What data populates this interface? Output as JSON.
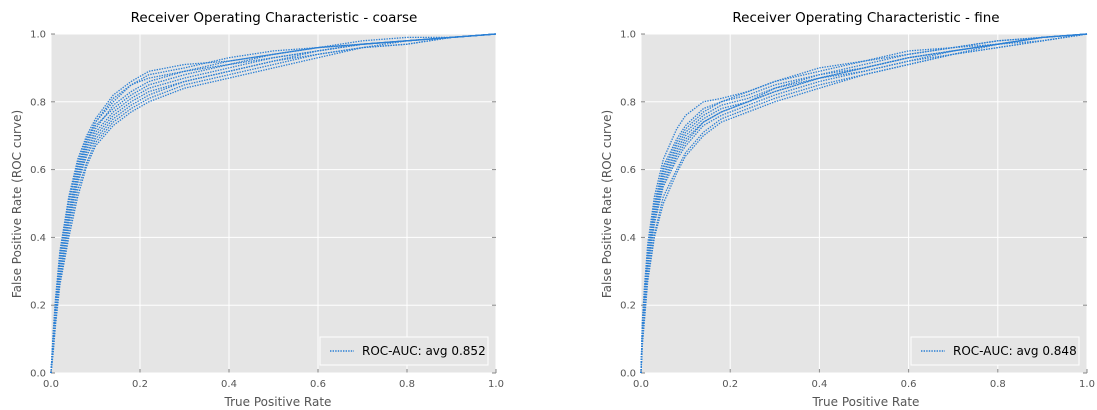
{
  "chart_data": [
    {
      "type": "line",
      "title": "Receiver Operating Characteristic - coarse",
      "xlabel": "True Positive Rate",
      "ylabel": "False Positive Rate (ROC curve)",
      "xlim": [
        0,
        1
      ],
      "ylim": [
        0,
        1
      ],
      "x_ticks": [
        "0.0",
        "0.2",
        "0.4",
        "0.6",
        "0.8",
        "1.0"
      ],
      "y_ticks": [
        "0.0",
        "0.2",
        "0.4",
        "0.6",
        "0.8",
        "1.0"
      ],
      "grid": true,
      "legend_position": "lower-right",
      "line_style": "dotted",
      "color": "#2a7fd4",
      "legend": [
        {
          "label": "ROC-AUC: avg 0.852"
        }
      ],
      "series": [
        {
          "x": [
            0,
            0.005,
            0.01,
            0.02,
            0.04,
            0.06,
            0.08,
            0.1,
            0.14,
            0.18,
            0.22,
            0.3,
            0.4,
            0.5,
            0.6,
            0.7,
            0.8,
            0.9,
            1.0
          ],
          "y": [
            0,
            0.1,
            0.2,
            0.33,
            0.48,
            0.6,
            0.68,
            0.73,
            0.78,
            0.82,
            0.85,
            0.88,
            0.91,
            0.94,
            0.96,
            0.97,
            0.98,
            0.99,
            1.0
          ]
        },
        {
          "x": [
            0,
            0.005,
            0.01,
            0.02,
            0.04,
            0.06,
            0.08,
            0.1,
            0.14,
            0.18,
            0.22,
            0.3,
            0.4,
            0.5,
            0.6,
            0.7,
            0.8,
            0.9,
            1.0
          ],
          "y": [
            0,
            0.08,
            0.17,
            0.29,
            0.45,
            0.57,
            0.65,
            0.7,
            0.76,
            0.8,
            0.83,
            0.86,
            0.89,
            0.92,
            0.95,
            0.97,
            0.98,
            0.99,
            1.0
          ]
        },
        {
          "x": [
            0,
            0.005,
            0.01,
            0.02,
            0.04,
            0.06,
            0.08,
            0.1,
            0.14,
            0.18,
            0.22,
            0.3,
            0.4,
            0.5,
            0.6,
            0.7,
            0.8,
            0.9,
            1.0
          ],
          "y": [
            0,
            0.12,
            0.22,
            0.36,
            0.52,
            0.63,
            0.7,
            0.75,
            0.82,
            0.86,
            0.89,
            0.91,
            0.92,
            0.94,
            0.96,
            0.97,
            0.98,
            0.99,
            1.0
          ]
        },
        {
          "x": [
            0,
            0.005,
            0.01,
            0.02,
            0.04,
            0.06,
            0.08,
            0.1,
            0.14,
            0.18,
            0.22,
            0.3,
            0.4,
            0.5,
            0.6,
            0.7,
            0.8,
            0.9,
            1.0
          ],
          "y": [
            0,
            0.07,
            0.15,
            0.27,
            0.42,
            0.54,
            0.62,
            0.68,
            0.74,
            0.78,
            0.81,
            0.85,
            0.88,
            0.91,
            0.94,
            0.96,
            0.97,
            0.99,
            1.0
          ]
        },
        {
          "x": [
            0,
            0.005,
            0.01,
            0.02,
            0.04,
            0.06,
            0.08,
            0.1,
            0.14,
            0.18,
            0.22,
            0.3,
            0.4,
            0.5,
            0.6,
            0.7,
            0.8,
            0.9,
            1.0
          ],
          "y": [
            0,
            0.11,
            0.21,
            0.34,
            0.5,
            0.62,
            0.69,
            0.74,
            0.8,
            0.85,
            0.88,
            0.9,
            0.93,
            0.95,
            0.96,
            0.98,
            0.99,
            0.99,
            1.0
          ]
        },
        {
          "x": [
            0,
            0.005,
            0.01,
            0.02,
            0.04,
            0.06,
            0.08,
            0.1,
            0.14,
            0.18,
            0.22,
            0.3,
            0.4,
            0.5,
            0.6,
            0.7,
            0.8,
            0.9,
            1.0
          ],
          "y": [
            0,
            0.09,
            0.18,
            0.3,
            0.46,
            0.58,
            0.66,
            0.71,
            0.77,
            0.81,
            0.84,
            0.87,
            0.9,
            0.93,
            0.95,
            0.97,
            0.98,
            0.99,
            1.0
          ]
        },
        {
          "x": [
            0,
            0.005,
            0.01,
            0.02,
            0.04,
            0.06,
            0.08,
            0.1,
            0.14,
            0.18,
            0.22,
            0.3,
            0.4,
            0.5,
            0.6,
            0.7,
            0.8,
            0.9,
            1.0
          ],
          "y": [
            0,
            0.06,
            0.14,
            0.26,
            0.4,
            0.52,
            0.61,
            0.67,
            0.73,
            0.77,
            0.8,
            0.84,
            0.87,
            0.9,
            0.93,
            0.96,
            0.97,
            0.99,
            1.0
          ]
        },
        {
          "x": [
            0,
            0.005,
            0.01,
            0.02,
            0.04,
            0.06,
            0.08,
            0.1,
            0.14,
            0.18,
            0.22,
            0.3,
            0.4,
            0.5,
            0.6,
            0.7,
            0.8,
            0.9,
            1.0
          ],
          "y": [
            0,
            0.1,
            0.19,
            0.32,
            0.47,
            0.59,
            0.67,
            0.72,
            0.79,
            0.83,
            0.86,
            0.89,
            0.91,
            0.93,
            0.95,
            0.97,
            0.98,
            0.99,
            1.0
          ]
        },
        {
          "x": [
            0,
            0.005,
            0.01,
            0.02,
            0.04,
            0.06,
            0.08,
            0.1,
            0.14,
            0.18,
            0.22,
            0.3,
            0.4,
            0.5,
            0.6,
            0.7,
            0.8,
            0.9,
            1.0
          ],
          "y": [
            0,
            0.08,
            0.16,
            0.28,
            0.44,
            0.56,
            0.64,
            0.69,
            0.75,
            0.79,
            0.82,
            0.86,
            0.89,
            0.92,
            0.94,
            0.96,
            0.98,
            0.99,
            1.0
          ]
        },
        {
          "x": [
            0,
            0.005,
            0.01,
            0.02,
            0.04,
            0.06,
            0.08,
            0.1,
            0.14,
            0.18,
            0.22,
            0.3,
            0.4,
            0.5,
            0.6,
            0.7,
            0.8,
            0.9,
            1.0
          ],
          "y": [
            0,
            0.11,
            0.2,
            0.35,
            0.51,
            0.61,
            0.68,
            0.74,
            0.81,
            0.85,
            0.87,
            0.89,
            0.92,
            0.94,
            0.96,
            0.97,
            0.98,
            0.99,
            1.0
          ]
        }
      ]
    },
    {
      "type": "line",
      "title": "Receiver Operating Characteristic - fine",
      "xlabel": "True Positive Rate",
      "ylabel": "False Positive Rate (ROC curve)",
      "xlim": [
        0,
        1
      ],
      "ylim": [
        0,
        1
      ],
      "x_ticks": [
        "0.0",
        "0.2",
        "0.4",
        "0.6",
        "0.8",
        "1.0"
      ],
      "y_ticks": [
        "0.0",
        "0.2",
        "0.4",
        "0.6",
        "0.8",
        "1.0"
      ],
      "grid": true,
      "legend_position": "lower-right",
      "line_style": "dotted",
      "color": "#2a7fd4",
      "legend": [
        {
          "label": "ROC-AUC: avg 0.848"
        }
      ],
      "series": [
        {
          "x": [
            0,
            0.003,
            0.008,
            0.015,
            0.03,
            0.05,
            0.08,
            0.1,
            0.14,
            0.18,
            0.24,
            0.3,
            0.4,
            0.5,
            0.6,
            0.7,
            0.8,
            0.9,
            1.0
          ],
          "y": [
            0,
            0.12,
            0.22,
            0.33,
            0.47,
            0.58,
            0.66,
            0.7,
            0.75,
            0.78,
            0.8,
            0.83,
            0.87,
            0.9,
            0.93,
            0.95,
            0.97,
            0.99,
            1.0
          ]
        },
        {
          "x": [
            0,
            0.003,
            0.008,
            0.015,
            0.03,
            0.05,
            0.08,
            0.1,
            0.14,
            0.18,
            0.24,
            0.3,
            0.4,
            0.5,
            0.6,
            0.7,
            0.8,
            0.9,
            1.0
          ],
          "y": [
            0,
            0.15,
            0.26,
            0.38,
            0.52,
            0.63,
            0.72,
            0.76,
            0.8,
            0.81,
            0.83,
            0.86,
            0.9,
            0.92,
            0.94,
            0.96,
            0.98,
            0.99,
            1.0
          ]
        },
        {
          "x": [
            0,
            0.003,
            0.008,
            0.015,
            0.03,
            0.05,
            0.08,
            0.1,
            0.14,
            0.18,
            0.24,
            0.3,
            0.4,
            0.5,
            0.6,
            0.7,
            0.8,
            0.9,
            1.0
          ],
          "y": [
            0,
            0.1,
            0.19,
            0.3,
            0.44,
            0.55,
            0.63,
            0.67,
            0.73,
            0.76,
            0.79,
            0.82,
            0.86,
            0.89,
            0.92,
            0.94,
            0.97,
            0.99,
            1.0
          ]
        },
        {
          "x": [
            0,
            0.003,
            0.008,
            0.015,
            0.03,
            0.05,
            0.08,
            0.1,
            0.14,
            0.18,
            0.24,
            0.3,
            0.4,
            0.5,
            0.6,
            0.7,
            0.8,
            0.9,
            1.0
          ],
          "y": [
            0,
            0.13,
            0.24,
            0.35,
            0.49,
            0.6,
            0.68,
            0.72,
            0.77,
            0.8,
            0.82,
            0.85,
            0.88,
            0.91,
            0.94,
            0.96,
            0.97,
            0.99,
            1.0
          ]
        },
        {
          "x": [
            0,
            0.003,
            0.008,
            0.015,
            0.03,
            0.05,
            0.08,
            0.1,
            0.14,
            0.18,
            0.24,
            0.3,
            0.4,
            0.5,
            0.6,
            0.7,
            0.8,
            0.9,
            1.0
          ],
          "y": [
            0,
            0.09,
            0.17,
            0.28,
            0.41,
            0.52,
            0.6,
            0.65,
            0.71,
            0.75,
            0.78,
            0.81,
            0.85,
            0.88,
            0.91,
            0.94,
            0.96,
            0.98,
            1.0
          ]
        },
        {
          "x": [
            0,
            0.003,
            0.008,
            0.015,
            0.03,
            0.05,
            0.08,
            0.1,
            0.14,
            0.18,
            0.24,
            0.3,
            0.4,
            0.5,
            0.6,
            0.7,
            0.8,
            0.9,
            1.0
          ],
          "y": [
            0,
            0.11,
            0.21,
            0.32,
            0.46,
            0.57,
            0.65,
            0.69,
            0.74,
            0.77,
            0.8,
            0.84,
            0.87,
            0.9,
            0.93,
            0.95,
            0.97,
            0.99,
            1.0
          ]
        },
        {
          "x": [
            0,
            0.003,
            0.008,
            0.015,
            0.03,
            0.05,
            0.08,
            0.1,
            0.14,
            0.18,
            0.24,
            0.3,
            0.4,
            0.5,
            0.6,
            0.7,
            0.8,
            0.9,
            1.0
          ],
          "y": [
            0,
            0.14,
            0.25,
            0.36,
            0.5,
            0.61,
            0.69,
            0.73,
            0.78,
            0.8,
            0.83,
            0.86,
            0.89,
            0.92,
            0.95,
            0.96,
            0.98,
            0.99,
            1.0
          ]
        },
        {
          "x": [
            0,
            0.003,
            0.008,
            0.015,
            0.03,
            0.05,
            0.08,
            0.1,
            0.14,
            0.18,
            0.24,
            0.3,
            0.4,
            0.5,
            0.6,
            0.7,
            0.8,
            0.9,
            1.0
          ],
          "y": [
            0,
            0.08,
            0.16,
            0.27,
            0.4,
            0.5,
            0.59,
            0.64,
            0.7,
            0.74,
            0.77,
            0.8,
            0.84,
            0.88,
            0.91,
            0.94,
            0.96,
            0.98,
            1.0
          ]
        },
        {
          "x": [
            0,
            0.003,
            0.008,
            0.015,
            0.03,
            0.05,
            0.08,
            0.1,
            0.14,
            0.18,
            0.24,
            0.3,
            0.4,
            0.5,
            0.6,
            0.7,
            0.8,
            0.9,
            1.0
          ],
          "y": [
            0,
            0.12,
            0.23,
            0.34,
            0.48,
            0.59,
            0.67,
            0.71,
            0.76,
            0.79,
            0.81,
            0.84,
            0.88,
            0.9,
            0.93,
            0.95,
            0.97,
            0.99,
            1.0
          ]
        },
        {
          "x": [
            0,
            0.003,
            0.008,
            0.015,
            0.03,
            0.05,
            0.08,
            0.1,
            0.14,
            0.18,
            0.24,
            0.3,
            0.4,
            0.5,
            0.6,
            0.7,
            0.8,
            0.9,
            1.0
          ],
          "y": [
            0,
            0.1,
            0.2,
            0.31,
            0.45,
            0.56,
            0.64,
            0.68,
            0.74,
            0.77,
            0.8,
            0.83,
            0.87,
            0.89,
            0.92,
            0.95,
            0.97,
            0.98,
            1.0
          ]
        }
      ]
    }
  ]
}
